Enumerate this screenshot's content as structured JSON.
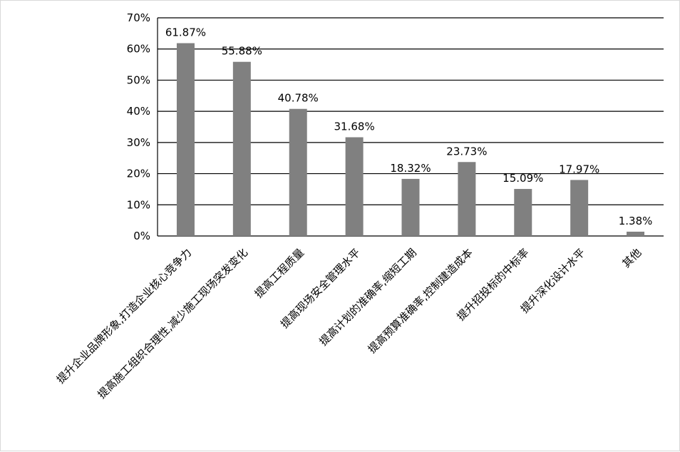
{
  "chart_data": {
    "type": "bar",
    "categories": [
      "提升企业品牌形象,打造企业核心竞争力",
      "提高施工组织合理性,减少施工现场突发变化",
      "提高工程质量",
      "提高现场安全管理水平",
      "提高计划的准确率,缩短工期",
      "提高预算准确率,控制建造成本",
      "提升招投标的中标率",
      "提升深化设计水平",
      "其他"
    ],
    "values": [
      61.87,
      55.88,
      40.78,
      31.68,
      18.32,
      23.73,
      15.09,
      17.97,
      1.38
    ],
    "data_labels": [
      "61.87%",
      "55.88%",
      "40.78%",
      "31.68%",
      "18.32%",
      "23.73%",
      "15.09%",
      "17.97%",
      "1.38%"
    ],
    "y_ticks": [
      "0%",
      "10%",
      "20%",
      "30%",
      "40%",
      "50%",
      "60%",
      "70%"
    ],
    "ylim": [
      0,
      70
    ],
    "title": "",
    "xlabel": "",
    "ylabel": "",
    "grid": true,
    "legend": "none",
    "bar_color": "#808080",
    "grid_color": "#000000"
  }
}
